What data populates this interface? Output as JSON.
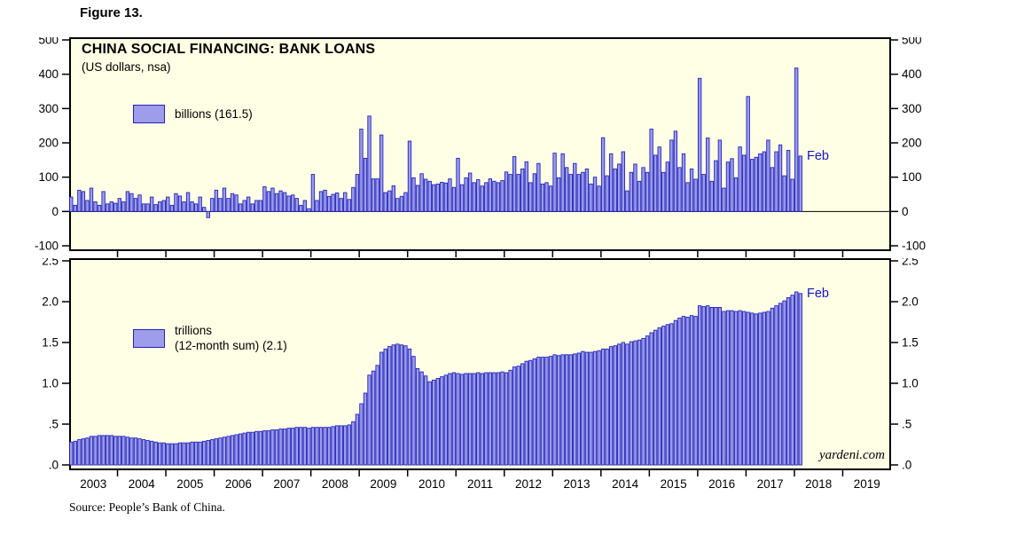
{
  "figure_label": "Figure 13.",
  "title": "CHINA SOCIAL FINANCING: BANK LOANS",
  "subtitle": "(US dollars, nsa)",
  "source": "Source: People’s Bank of China.",
  "watermark": "yardeni.com",
  "colors": {
    "panel_bg": "#FFFFE5",
    "bar_fill": "#9D9DEB",
    "bar_stroke": "#2222BE",
    "annotation": "#1414CC",
    "axis": "#000000"
  },
  "x_axis": {
    "year_labels": [
      "2003",
      "2004",
      "2005",
      "2006",
      "2007",
      "2008",
      "2009",
      "2010",
      "2011",
      "2012",
      "2013",
      "2014",
      "2015",
      "2016",
      "2017",
      "2018",
      "2019"
    ],
    "slots": 204,
    "months_per_year": 12
  },
  "chart_data": [
    {
      "type": "bar",
      "panel": "top",
      "legend": [
        "billions (161.5)"
      ],
      "last_point_label": "Feb",
      "latest_value": 161.5,
      "x_start": "2003-01",
      "x_end": "2018-02",
      "ylim": [
        -100,
        500
      ],
      "ytick_labels": [
        "500",
        "400",
        "300",
        "200",
        "100",
        "0",
        "-100"
      ],
      "ytick_values": [
        500,
        400,
        300,
        200,
        100,
        0,
        -100
      ],
      "values": [
        42,
        18,
        62,
        58,
        32,
        68,
        28,
        18,
        58,
        22,
        28,
        24,
        38,
        28,
        58,
        52,
        38,
        48,
        22,
        22,
        42,
        20,
        28,
        32,
        42,
        18,
        52,
        45,
        28,
        55,
        28,
        22,
        42,
        12,
        -18,
        38,
        62,
        38,
        68,
        38,
        52,
        48,
        22,
        32,
        42,
        22,
        32,
        32,
        72,
        58,
        68,
        52,
        60,
        55,
        45,
        48,
        38,
        18,
        32,
        8,
        108,
        32,
        58,
        62,
        44,
        50,
        54,
        38,
        55,
        35,
        70,
        108,
        240,
        155,
        278,
        95,
        95,
        223,
        55,
        60,
        75,
        38,
        44,
        55,
        205,
        98,
        76,
        110,
        94,
        88,
        78,
        80,
        85,
        83,
        95,
        70,
        155,
        78,
        98,
        112,
        84,
        93,
        74,
        84,
        95,
        88,
        84,
        90,
        115,
        108,
        160,
        108,
        124,
        145,
        84,
        110,
        140,
        80,
        84,
        74,
        170,
        98,
        168,
        128,
        108,
        140,
        108,
        114,
        124,
        80,
        100,
        74,
        215,
        104,
        168,
        124,
        138,
        174,
        60,
        114,
        138,
        88,
        128,
        114,
        240,
        164,
        188,
        114,
        144,
        208,
        234,
        128,
        168,
        84,
        124,
        94,
        388,
        108,
        214,
        88,
        148,
        208,
        68,
        144,
        154,
        98,
        188,
        164,
        335,
        152,
        158,
        168,
        174,
        208,
        128,
        174,
        194,
        104,
        178,
        94,
        418,
        161.5
      ]
    },
    {
      "type": "bar",
      "panel": "bottom",
      "legend": [
        "trillions",
        "(12-month sum) (2.1)"
      ],
      "last_point_label": "Feb",
      "latest_value": 2.1,
      "x_start": "2003-01",
      "x_end": "2018-02",
      "ylim": [
        0,
        2.5
      ],
      "ytick_labels": [
        "2.5",
        "2.0",
        "1.5",
        "1.0",
        ".5",
        ".0"
      ],
      "ytick_values": [
        2.5,
        2.0,
        1.5,
        1.0,
        0.5,
        0.0
      ],
      "values": [
        0.28,
        0.29,
        0.31,
        0.32,
        0.33,
        0.35,
        0.35,
        0.36,
        0.36,
        0.36,
        0.36,
        0.35,
        0.35,
        0.35,
        0.34,
        0.33,
        0.33,
        0.32,
        0.31,
        0.3,
        0.29,
        0.28,
        0.27,
        0.27,
        0.26,
        0.26,
        0.26,
        0.27,
        0.27,
        0.27,
        0.28,
        0.28,
        0.28,
        0.29,
        0.3,
        0.31,
        0.32,
        0.33,
        0.34,
        0.35,
        0.36,
        0.37,
        0.38,
        0.39,
        0.4,
        0.4,
        0.41,
        0.41,
        0.42,
        0.42,
        0.43,
        0.43,
        0.44,
        0.44,
        0.45,
        0.45,
        0.46,
        0.46,
        0.46,
        0.45,
        0.46,
        0.46,
        0.46,
        0.46,
        0.46,
        0.47,
        0.48,
        0.48,
        0.48,
        0.49,
        0.53,
        0.62,
        0.75,
        0.88,
        1.1,
        1.15,
        1.22,
        1.38,
        1.42,
        1.45,
        1.47,
        1.48,
        1.47,
        1.46,
        1.42,
        1.33,
        1.18,
        1.14,
        1.09,
        1.02,
        1.04,
        1.06,
        1.08,
        1.1,
        1.12,
        1.13,
        1.12,
        1.11,
        1.12,
        1.12,
        1.12,
        1.13,
        1.12,
        1.13,
        1.13,
        1.13,
        1.13,
        1.14,
        1.13,
        1.16,
        1.2,
        1.21,
        1.24,
        1.27,
        1.28,
        1.3,
        1.32,
        1.32,
        1.32,
        1.33,
        1.35,
        1.34,
        1.35,
        1.35,
        1.35,
        1.36,
        1.37,
        1.39,
        1.38,
        1.38,
        1.39,
        1.4,
        1.42,
        1.42,
        1.45,
        1.46,
        1.48,
        1.5,
        1.48,
        1.51,
        1.52,
        1.53,
        1.55,
        1.58,
        1.62,
        1.65,
        1.68,
        1.7,
        1.72,
        1.73,
        1.77,
        1.8,
        1.82,
        1.81,
        1.83,
        1.82,
        1.95,
        1.94,
        1.95,
        1.93,
        1.93,
        1.93,
        1.88,
        1.89,
        1.89,
        1.88,
        1.89,
        1.88,
        1.87,
        1.86,
        1.85,
        1.86,
        1.87,
        1.88,
        1.92,
        1.95,
        1.98,
        2.01,
        2.05,
        2.08,
        2.12,
        2.1
      ]
    }
  ]
}
